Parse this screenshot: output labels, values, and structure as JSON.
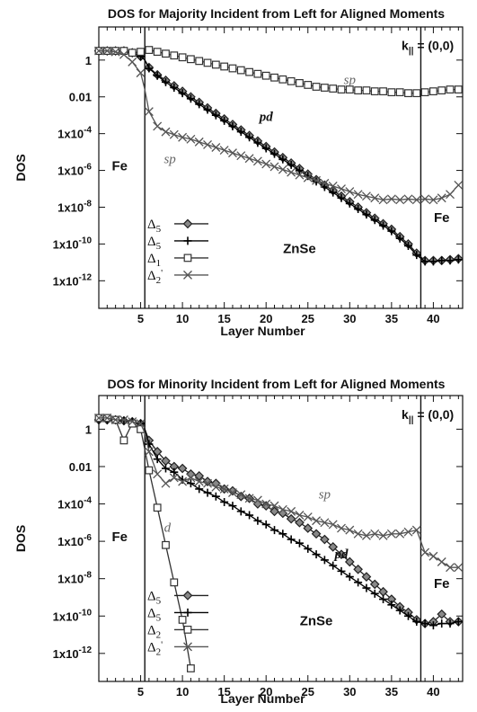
{
  "chart_data": [
    {
      "type": "line",
      "title": "DOS for Majority Incident from Left for Aligned Moments",
      "xlabel": "Layer Number",
      "ylabel": "DOS",
      "xlim": [
        0,
        43.5
      ],
      "ylim_log10": [
        -13.5,
        1.8
      ],
      "log_y": true,
      "x_ticks": [
        5,
        10,
        15,
        20,
        25,
        30,
        35,
        40
      ],
      "y_ticks": [
        {
          "exp": 0,
          "label": "1"
        },
        {
          "exp": -2,
          "label": "0.01"
        },
        {
          "exp": -4,
          "label": "1x10-4"
        },
        {
          "exp": -6,
          "label": "1x10-6"
        },
        {
          "exp": -8,
          "label": "1x10-8"
        },
        {
          "exp": -10,
          "label": "1x10-10"
        },
        {
          "exp": -12,
          "label": "1x10-12"
        }
      ],
      "interfaces_x": [
        5.5,
        38.5
      ],
      "kpar_label": "k",
      "kpar_sub": "||",
      "kpar_value": " = (0,0)",
      "regions": [
        {
          "text": "Fe",
          "x": 2.5,
          "y_exp": -6.0
        },
        {
          "text": "ZnSe",
          "x": 24,
          "y_exp": -10.5
        },
        {
          "text": "Fe",
          "x": 41,
          "y_exp": -8.8
        }
      ],
      "annotations": [
        {
          "text": "sp",
          "x": 30,
          "y_exp": -1.3
        },
        {
          "text": "pd",
          "x": 20,
          "y_exp": -3.3
        },
        {
          "text": "sp",
          "x": 8.5,
          "y_exp": -5.6
        }
      ],
      "legend": [
        {
          "main": "Δ",
          "sub": "5",
          "prime": "",
          "marker": "diamond"
        },
        {
          "main": "Δ",
          "sub": "5",
          "prime": "",
          "marker": "plus"
        },
        {
          "main": "Δ",
          "sub": "1",
          "prime": "",
          "marker": "square"
        },
        {
          "main": "Δ",
          "sub": "2",
          "prime": "'",
          "marker": "cross"
        }
      ],
      "series": [
        {
          "marker": "diamond",
          "x": [
            0,
            1,
            2,
            3,
            4,
            5,
            5.5,
            6,
            7,
            8,
            9,
            10,
            11,
            12,
            13,
            14,
            15,
            16,
            17,
            18,
            19,
            20,
            21,
            22,
            23,
            24,
            25,
            26,
            27,
            28,
            29,
            30,
            31,
            32,
            33,
            34,
            35,
            36,
            37,
            38,
            39,
            40,
            41,
            42,
            43
          ],
          "y_exp": [
            0.5,
            0.5,
            0.5,
            0.5,
            0.4,
            0.2,
            0,
            -0.4,
            -0.8,
            -1.1,
            -1.4,
            -1.7,
            -2.0,
            -2.3,
            -2.6,
            -2.9,
            -3.2,
            -3.5,
            -3.8,
            -4.1,
            -4.4,
            -4.7,
            -5.0,
            -5.3,
            -5.6,
            -5.9,
            -6.2,
            -6.5,
            -6.8,
            -7.1,
            -7.4,
            -7.7,
            -8.0,
            -8.3,
            -8.6,
            -8.9,
            -9.2,
            -9.6,
            -10.0,
            -10.5,
            -10.9,
            -10.9,
            -10.9,
            -10.85,
            -10.8
          ]
        },
        {
          "marker": "plus",
          "x": [
            0,
            1,
            2,
            3,
            4,
            5,
            5.5,
            6,
            7,
            8,
            9,
            10,
            11,
            12,
            13,
            14,
            15,
            16,
            17,
            18,
            19,
            20,
            21,
            22,
            23,
            24,
            25,
            26,
            27,
            28,
            29,
            30,
            31,
            32,
            33,
            34,
            35,
            36,
            37,
            38,
            39,
            40,
            41,
            42,
            43
          ],
          "y_exp": [
            0.5,
            0.5,
            0.5,
            0.5,
            0.4,
            0.2,
            0,
            -0.45,
            -0.85,
            -1.2,
            -1.5,
            -1.8,
            -2.1,
            -2.4,
            -2.7,
            -3.0,
            -3.3,
            -3.6,
            -3.9,
            -4.2,
            -4.5,
            -4.8,
            -5.1,
            -5.4,
            -5.7,
            -6.0,
            -6.3,
            -6.6,
            -6.9,
            -7.2,
            -7.5,
            -7.8,
            -8.1,
            -8.4,
            -8.7,
            -9.0,
            -9.3,
            -9.7,
            -10.1,
            -10.6,
            -10.95,
            -10.95,
            -10.9,
            -10.9,
            -10.85
          ]
        },
        {
          "marker": "square",
          "x": [
            0,
            1,
            2,
            3,
            4,
            5,
            6,
            7,
            8,
            9,
            10,
            11,
            12,
            13,
            14,
            15,
            16,
            17,
            18,
            19,
            20,
            21,
            22,
            23,
            24,
            25,
            26,
            27,
            28,
            29,
            30,
            31,
            32,
            33,
            34,
            35,
            36,
            37,
            38,
            39,
            40,
            41,
            42,
            43
          ],
          "y_exp": [
            0.5,
            0.5,
            0.5,
            0.5,
            0.4,
            0.45,
            0.55,
            0.45,
            0.35,
            0.25,
            0.15,
            0.05,
            -0.05,
            -0.15,
            -0.25,
            -0.35,
            -0.45,
            -0.55,
            -0.65,
            -0.75,
            -0.85,
            -0.95,
            -1.05,
            -1.15,
            -1.25,
            -1.35,
            -1.45,
            -1.5,
            -1.55,
            -1.6,
            -1.6,
            -1.65,
            -1.65,
            -1.7,
            -1.7,
            -1.75,
            -1.75,
            -1.8,
            -1.8,
            -1.75,
            -1.7,
            -1.65,
            -1.6,
            -1.6
          ]
        },
        {
          "marker": "cross",
          "x": [
            0,
            1,
            2,
            3,
            4,
            5,
            5.5,
            6,
            7,
            8,
            9,
            10,
            11,
            12,
            13,
            14,
            15,
            16,
            17,
            18,
            19,
            20,
            21,
            22,
            23,
            24,
            25,
            26,
            27,
            28,
            29,
            30,
            31,
            32,
            33,
            34,
            35,
            36,
            37,
            38,
            39,
            40,
            41,
            42,
            43
          ],
          "y_exp": [
            0.5,
            0.5,
            0.45,
            0.3,
            -0.1,
            -0.7,
            -1.6,
            -2.8,
            -3.6,
            -3.9,
            -4.05,
            -4.2,
            -4.3,
            -4.45,
            -4.6,
            -4.75,
            -4.9,
            -5.05,
            -5.2,
            -5.35,
            -5.5,
            -5.65,
            -5.8,
            -5.95,
            -6.1,
            -6.25,
            -6.4,
            -6.55,
            -6.7,
            -6.85,
            -7.0,
            -7.15,
            -7.3,
            -7.4,
            -7.5,
            -7.6,
            -7.55,
            -7.6,
            -7.55,
            -7.6,
            -7.55,
            -7.6,
            -7.5,
            -7.3,
            -6.8
          ]
        }
      ]
    },
    {
      "type": "line",
      "title": "DOS for Minority Incident from Left for Aligned Moments",
      "xlabel": "Layer Number",
      "ylabel": "DOS",
      "xlim": [
        0,
        43.5
      ],
      "ylim_log10": [
        -13.5,
        1.8
      ],
      "log_y": true,
      "x_ticks": [
        5,
        10,
        15,
        20,
        25,
        30,
        35,
        40
      ],
      "y_ticks": [
        {
          "exp": 0,
          "label": "1"
        },
        {
          "exp": -2,
          "label": "0.01"
        },
        {
          "exp": -4,
          "label": "1x10-4"
        },
        {
          "exp": -6,
          "label": "1x10-6"
        },
        {
          "exp": -8,
          "label": "1x10-8"
        },
        {
          "exp": -10,
          "label": "1x10-10"
        },
        {
          "exp": -12,
          "label": "1x10-12"
        }
      ],
      "interfaces_x": [
        5.5,
        38.5
      ],
      "kpar_label": "k",
      "kpar_sub": "||",
      "kpar_value": " = (0,0)",
      "regions": [
        {
          "text": "Fe",
          "x": 2.5,
          "y_exp": -6.0
        },
        {
          "text": "ZnSe",
          "x": 26,
          "y_exp": -10.5
        },
        {
          "text": "Fe",
          "x": 41,
          "y_exp": -8.5
        }
      ],
      "annotations": [
        {
          "text": "sp",
          "x": 27,
          "y_exp": -3.7
        },
        {
          "text": "pd",
          "x": 29,
          "y_exp": -6.9
        },
        {
          "text": "d",
          "x": 8.2,
          "y_exp": -5.5
        }
      ],
      "legend": [
        {
          "main": "Δ",
          "sub": "5",
          "prime": "",
          "marker": "diamond"
        },
        {
          "main": "Δ",
          "sub": "5",
          "prime": "",
          "marker": "plus"
        },
        {
          "main": "Δ",
          "sub": "2",
          "prime": "",
          "marker": "square"
        },
        {
          "main": "Δ",
          "sub": "2",
          "prime": "'",
          "marker": "cross"
        }
      ],
      "series": [
        {
          "marker": "diamond",
          "x": [
            0,
            1,
            2,
            3,
            4,
            5,
            5.5,
            6,
            7,
            8,
            9,
            10,
            11,
            12,
            13,
            14,
            15,
            16,
            17,
            18,
            19,
            20,
            21,
            22,
            23,
            24,
            25,
            26,
            27,
            28,
            29,
            30,
            31,
            32,
            33,
            34,
            35,
            36,
            37,
            38,
            39,
            40,
            41,
            42,
            43
          ],
          "y_exp": [
            0.5,
            0.5,
            0.5,
            0.45,
            0.4,
            0.3,
            0,
            -0.6,
            -1.2,
            -1.7,
            -2.0,
            -2.1,
            -2.4,
            -2.5,
            -2.8,
            -2.9,
            -3.2,
            -3.3,
            -3.6,
            -3.7,
            -4.0,
            -4.1,
            -4.4,
            -4.5,
            -4.8,
            -5.0,
            -5.3,
            -5.6,
            -5.9,
            -6.3,
            -6.7,
            -7.1,
            -7.5,
            -7.9,
            -8.3,
            -8.7,
            -9.1,
            -9.5,
            -9.8,
            -10.2,
            -10.4,
            -10.3,
            -9.9,
            -10.3,
            -10.3
          ]
        },
        {
          "marker": "plus",
          "x": [
            0,
            1,
            2,
            3,
            4,
            5,
            5.5,
            6,
            7,
            8,
            9,
            10,
            11,
            12,
            13,
            14,
            15,
            16,
            17,
            18,
            19,
            20,
            21,
            22,
            23,
            24,
            25,
            26,
            27,
            28,
            29,
            30,
            31,
            32,
            33,
            34,
            35,
            36,
            37,
            38,
            39,
            40,
            41,
            42,
            43
          ],
          "y_exp": [
            0.5,
            0.5,
            0.5,
            0.45,
            0.4,
            0.3,
            0,
            -0.8,
            -1.6,
            -2.1,
            -2.3,
            -2.7,
            -2.9,
            -3.2,
            -3.4,
            -3.6,
            -3.9,
            -4.1,
            -4.4,
            -4.6,
            -4.9,
            -5.1,
            -5.4,
            -5.6,
            -5.9,
            -6.1,
            -6.4,
            -6.7,
            -7.0,
            -7.3,
            -7.6,
            -7.9,
            -8.2,
            -8.5,
            -8.8,
            -9.1,
            -9.4,
            -9.7,
            -10.0,
            -10.3,
            -10.4,
            -10.5,
            -10.4,
            -10.4,
            -10.3
          ]
        },
        {
          "marker": "square",
          "x": [
            0,
            1,
            2,
            3,
            4,
            5,
            6,
            7,
            8,
            9,
            10,
            11
          ],
          "y_exp": [
            0.6,
            0.6,
            0.5,
            -0.6,
            0.3,
            0.0,
            -2.2,
            -4.2,
            -6.2,
            -8.2,
            -10.2,
            -12.8
          ]
        },
        {
          "marker": "cross",
          "x": [
            0,
            1,
            2,
            3,
            4,
            5,
            5.5,
            6,
            7,
            8,
            9,
            10,
            11,
            12,
            13,
            14,
            15,
            16,
            17,
            18,
            19,
            20,
            21,
            22,
            23,
            24,
            25,
            26,
            27,
            28,
            29,
            30,
            31,
            32,
            33,
            34,
            35,
            36,
            37,
            38,
            39,
            40,
            41,
            42,
            43
          ],
          "y_exp": [
            0.6,
            0.6,
            0.5,
            0.5,
            0.4,
            0.3,
            -0.2,
            -1.2,
            -2.4,
            -2.9,
            -2.6,
            -2.8,
            -2.6,
            -2.8,
            -2.9,
            -3.1,
            -3.2,
            -3.4,
            -3.5,
            -3.7,
            -3.8,
            -4.0,
            -4.1,
            -4.3,
            -4.4,
            -4.6,
            -4.7,
            -4.9,
            -5.0,
            -5.1,
            -5.3,
            -5.4,
            -5.6,
            -5.7,
            -5.6,
            -5.7,
            -5.6,
            -5.6,
            -5.5,
            -5.4,
            -6.6,
            -6.8,
            -7.1,
            -7.4,
            -7.4
          ]
        }
      ]
    }
  ]
}
